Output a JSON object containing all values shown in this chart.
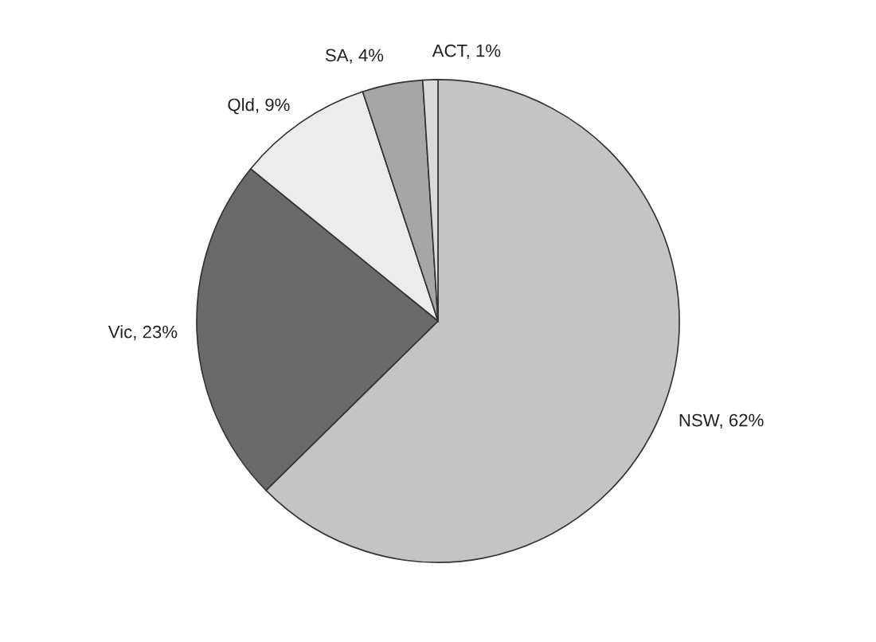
{
  "chart_data": {
    "type": "pie",
    "categories": [
      "NSW",
      "Vic",
      "Qld",
      "SA",
      "ACT"
    ],
    "values": [
      62,
      23,
      9,
      4,
      1
    ],
    "colors": [
      "#c4c4c4",
      "#6a6a6a",
      "#ececec",
      "#a6a6a6",
      "#dadada"
    ],
    "value_labels": [
      "62%",
      "23%",
      "9%",
      "4%",
      "1%"
    ]
  }
}
